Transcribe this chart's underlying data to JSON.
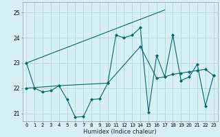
{
  "xlabel": "Humidex (Indice chaleur)",
  "background_color": "#d6f0f5",
  "grid_color": "#b8d8de",
  "line_color": "#006868",
  "xlim": [
    -0.5,
    23.5
  ],
  "ylim": [
    20.7,
    25.4
  ],
  "yticks": [
    21,
    22,
    23,
    24,
    25
  ],
  "xticks": [
    0,
    1,
    2,
    3,
    4,
    5,
    6,
    7,
    8,
    9,
    10,
    11,
    12,
    13,
    14,
    15,
    16,
    17,
    18,
    19,
    20,
    21,
    22,
    23
  ],
  "series1": {
    "points": [
      [
        0,
        23.0
      ],
      [
        1,
        22.0
      ],
      [
        2,
        21.85
      ],
      [
        3,
        21.9
      ],
      [
        4,
        22.1
      ],
      [
        5,
        21.55
      ],
      [
        6,
        20.85
      ],
      [
        7,
        20.88
      ],
      [
        8,
        21.55
      ],
      [
        9,
        21.58
      ],
      [
        10,
        22.2
      ],
      [
        11,
        24.1
      ],
      [
        12,
        24.0
      ],
      [
        13,
        24.1
      ],
      [
        14,
        24.4
      ],
      [
        15,
        21.05
      ],
      [
        16,
        23.3
      ],
      [
        17,
        22.45
      ],
      [
        18,
        24.1
      ],
      [
        19,
        22.3
      ],
      [
        20,
        22.45
      ],
      [
        21,
        22.95
      ],
      [
        22,
        21.3
      ],
      [
        23,
        22.5
      ]
    ]
  },
  "series2": {
    "points": [
      [
        0,
        23.0
      ],
      [
        17,
        25.1
      ]
    ]
  },
  "series3": {
    "points": [
      [
        0,
        22.0
      ],
      [
        4,
        22.1
      ],
      [
        10,
        22.2
      ],
      [
        14,
        23.65
      ],
      [
        16,
        22.4
      ],
      [
        17,
        22.45
      ],
      [
        18,
        22.55
      ],
      [
        19,
        22.6
      ],
      [
        20,
        22.65
      ],
      [
        21,
        22.7
      ],
      [
        22,
        22.75
      ],
      [
        23,
        22.5
      ]
    ]
  }
}
